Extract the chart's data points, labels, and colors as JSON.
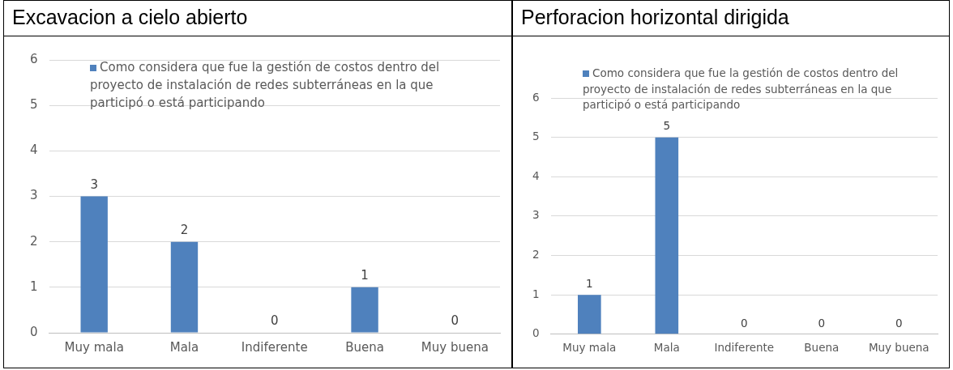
{
  "chart_data": [
    {
      "type": "bar",
      "title": "Excavacion a cielo abierto",
      "categories": [
        "Muy mala",
        "Mala",
        "Indiferente",
        "Buena",
        "Muy buena"
      ],
      "series": [
        {
          "name": "Como considera que fue la gestión de costos dentro del proyecto de instalación de redes subterráneas en la que participó o está participando",
          "color": "#4f81bd",
          "values": [
            3,
            2,
            0,
            1,
            0
          ]
        }
      ],
      "ylim": [
        0,
        6
      ],
      "yticks": [
        0,
        1,
        2,
        3,
        4,
        5,
        6
      ],
      "grid": "y",
      "legend": "top",
      "data_labels": true
    },
    {
      "type": "bar",
      "title": "Perforacion horizontal dirigida",
      "categories": [
        "Muy mala",
        "Mala",
        "Indiferente",
        "Buena",
        "Muy buena"
      ],
      "series": [
        {
          "name": "Como considera que fue la gestión de costos dentro del proyecto de instalación de redes subterráneas en la que participó o está participando",
          "color": "#4f81bd",
          "values": [
            1,
            5,
            0,
            0,
            0
          ]
        }
      ],
      "ylim": [
        0,
        6
      ],
      "yticks": [
        0,
        1,
        2,
        3,
        4,
        5,
        6
      ],
      "grid": "y",
      "legend": "top",
      "data_labels": true
    }
  ]
}
